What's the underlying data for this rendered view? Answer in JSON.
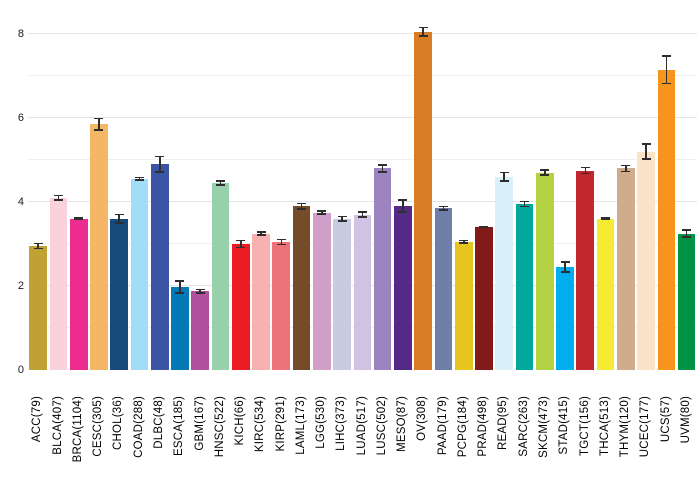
{
  "chart_data": {
    "type": "bar",
    "title": "",
    "xlabel": "",
    "ylabel": "",
    "categories": [
      "ACC(79)",
      "BLCA(407)",
      "BRCA(1104)",
      "CESC(305)",
      "CHOL(36)",
      "COAD(288)",
      "DLBC(48)",
      "ESCA(185)",
      "GBM(167)",
      "HNSC(522)",
      "KICH(66)",
      "KIRC(534)",
      "KIRP(291)",
      "LAML(173)",
      "LGG(530)",
      "LIHC(373)",
      "LUAD(517)",
      "LUSC(502)",
      "MESO(87)",
      "OV(308)",
      "PAAD(179)",
      "PCPG(184)",
      "PRAD(498)",
      "READ(95)",
      "SARC(263)",
      "SKCM(473)",
      "STAD(415)",
      "TGCT(156)",
      "THCA(513)",
      "THYM(120)",
      "UCEC(177)",
      "UCS(57)",
      "UVM(80)"
    ],
    "values": [
      2.95,
      4.1,
      3.6,
      5.85,
      3.6,
      4.55,
      4.9,
      1.98,
      1.88,
      4.45,
      3.0,
      3.25,
      3.05,
      3.9,
      3.75,
      3.6,
      3.7,
      4.8,
      3.9,
      8.05,
      3.85,
      3.05,
      3.4,
      4.6,
      3.95,
      4.7,
      2.45,
      4.75,
      3.6,
      4.8,
      5.2,
      7.15,
      3.25
    ],
    "errors": [
      0.08,
      0.07,
      0.04,
      0.16,
      0.12,
      0.05,
      0.2,
      0.16,
      0.06,
      0.07,
      0.1,
      0.06,
      0.08,
      0.08,
      0.06,
      0.07,
      0.08,
      0.1,
      0.16,
      0.12,
      0.06,
      0.05,
      0.03,
      0.12,
      0.08,
      0.08,
      0.14,
      0.09,
      0.04,
      0.09,
      0.2,
      0.35,
      0.1
    ],
    "colors": [
      "#bfa233",
      "#fad2dc",
      "#ec2c8f",
      "#f4b766",
      "#164a7c",
      "#a2ddf7",
      "#3b54a4",
      "#0379b5",
      "#b04f9e",
      "#97d1ab",
      "#ec1c24",
      "#f7b1b0",
      "#ed737a",
      "#754c29",
      "#d29fc8",
      "#c9cbe0",
      "#d0c2e2",
      "#9b84c0",
      "#552a87",
      "#d87d26",
      "#6e7fa9",
      "#e6c51f",
      "#811a19",
      "#daf0f8",
      "#00a79d",
      "#b5d245",
      "#00aeef",
      "#c1272d",
      "#f5ec31",
      "#cfac8b",
      "#fae3c7",
      "#f7941e",
      "#009245"
    ],
    "yticks": [
      0,
      2,
      4,
      6,
      8
    ],
    "gridlines": [
      1,
      2,
      3,
      4,
      5,
      6,
      7,
      8
    ],
    "ylim": [
      0,
      8.43
    ],
    "grid": "horizontal",
    "legend": "none",
    "error_bar_color": "#2e2e2e",
    "background": "#ffffff"
  }
}
